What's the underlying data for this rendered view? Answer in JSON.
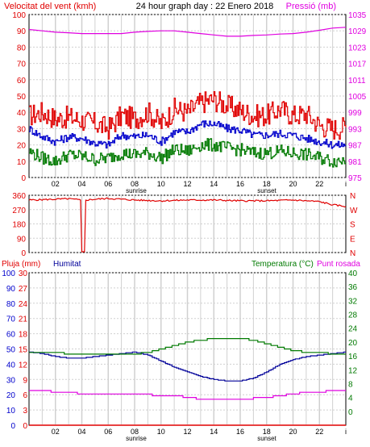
{
  "header": {
    "left": "Velocitat del vent (kmh)",
    "center": "24 hour graph day : 22 Enero 2018",
    "right": "Pressió (mb)"
  },
  "colors": {
    "wind_max": "#e00000",
    "wind_avg": "#0000cc",
    "wind_min": "#007a00",
    "pressure": "#e000e0",
    "grid": "#d0d0d0",
    "axis": "#000000"
  },
  "x_ticks": [
    "02",
    "04",
    "06",
    "08",
    "10",
    "12",
    "14",
    "16",
    "18",
    "20",
    "22",
    "i"
  ],
  "sun": {
    "sunrise_label": "sunrise",
    "sunset_label": "sunset",
    "sunrise_hour": 8,
    "sunset_hour": 17
  },
  "chart_data": [
    {
      "type": "line",
      "title": "24 hour graph day : 22 Enero 2018",
      "ylabel": "Velocitat del vent (kmh)",
      "y2label": "Pressió (mb)",
      "ylim": [
        0,
        100
      ],
      "y2lim": [
        975,
        1035
      ],
      "yticks": [
        "0",
        "10",
        "20",
        "30",
        "40",
        "50",
        "60",
        "70",
        "80",
        "90",
        "100"
      ],
      "y2ticks": [
        "975",
        "981",
        "987",
        "993",
        "999",
        "1005",
        "1011",
        "1017",
        "1023",
        "1029",
        "1035"
      ],
      "x": [
        0,
        1,
        2,
        3,
        4,
        5,
        6,
        7,
        8,
        9,
        10,
        11,
        12,
        13,
        14,
        15,
        16,
        17,
        18,
        19,
        20,
        21,
        22,
        23,
        24
      ],
      "series": [
        {
          "values": [
            38,
            40,
            36,
            37,
            35,
            33,
            30,
            38,
            36,
            40,
            33,
            42,
            40,
            46,
            48,
            44,
            41,
            38,
            38,
            42,
            38,
            39,
            32,
            30,
            31
          ]
        },
        {
          "values": [
            30,
            25,
            22,
            25,
            24,
            21,
            20,
            26,
            25,
            26,
            22,
            28,
            28,
            33,
            33,
            30,
            29,
            26,
            26,
            27,
            26,
            24,
            22,
            20,
            20
          ]
        },
        {
          "values": [
            16,
            12,
            10,
            14,
            13,
            11,
            12,
            15,
            14,
            15,
            12,
            17,
            16,
            20,
            20,
            18,
            17,
            15,
            15,
            16,
            15,
            14,
            12,
            10,
            11
          ]
        },
        {
          "values": [
            1029.5,
            1029,
            1028.5,
            1028.3,
            1028,
            1028,
            1028,
            1028,
            1028.5,
            1028.8,
            1029,
            1029,
            1028.5,
            1028,
            1027.5,
            1027,
            1027,
            1027.3,
            1027.5,
            1027.8,
            1028,
            1028.5,
            1029.2,
            1030,
            1030.3
          ]
        }
      ]
    },
    {
      "type": "line",
      "ylim": [
        0,
        360
      ],
      "yticks": [
        "0",
        "90",
        "180",
        "270",
        "360"
      ],
      "y2ticks": [
        "N",
        "E",
        "S",
        "W",
        "N"
      ],
      "x": [
        0,
        2,
        3,
        3.9,
        4.0,
        4.2,
        4.3,
        5,
        6,
        8,
        10,
        12,
        14,
        16,
        18,
        20,
        22,
        23,
        24
      ],
      "series": [
        {
          "values": [
            330,
            335,
            338,
            330,
            5,
            5,
            330,
            335,
            340,
            330,
            325,
            330,
            330,
            325,
            325,
            330,
            320,
            300,
            290
          ]
        }
      ]
    },
    {
      "type": "line",
      "ylim": [
        0,
        30
      ],
      "yticks": [
        "0",
        "3",
        "6",
        "9",
        "12",
        "15",
        "18",
        "21",
        "24",
        "27",
        "30"
      ],
      "x": [
        0,
        1,
        2,
        3,
        4,
        5,
        6,
        7,
        8,
        9,
        10,
        11,
        12,
        13,
        14,
        15,
        16,
        17,
        18,
        19,
        20,
        21,
        22,
        23,
        24
      ],
      "series": [
        {
          "name": "Pluja (mm)",
          "values": [
            0,
            0,
            0,
            0,
            0,
            0,
            0,
            0,
            0,
            0,
            0,
            0,
            0,
            0,
            0,
            0,
            0,
            0,
            0,
            0,
            0,
            0,
            0,
            0,
            0
          ]
        }
      ]
    },
    {
      "type": "line",
      "ylim": [
        0,
        100
      ],
      "yticks": [
        "0",
        "10",
        "20",
        "30",
        "40",
        "50",
        "60",
        "70",
        "80",
        "90",
        "100"
      ],
      "x": [
        0,
        1,
        2,
        3,
        4,
        5,
        6,
        7,
        8,
        9,
        10,
        11,
        12,
        13,
        14,
        15,
        16,
        17,
        18,
        19,
        20,
        21,
        22,
        23,
        24
      ],
      "series": [
        {
          "name": "Humitat",
          "values": [
            48,
            47,
            45,
            44,
            44,
            45,
            46,
            47,
            48,
            46,
            42,
            38,
            35,
            32,
            30,
            29,
            29,
            31,
            35,
            40,
            43,
            45,
            46,
            47,
            48
          ]
        }
      ]
    },
    {
      "type": "line",
      "ylim": [
        -4,
        40
      ],
      "yticks": [
        "0",
        "4",
        "8",
        "12",
        "16",
        "20",
        "24",
        "28",
        "32",
        "36",
        "40"
      ],
      "x": [
        0,
        1,
        2,
        3,
        4,
        5,
        6,
        7,
        8,
        9,
        10,
        11,
        12,
        13,
        14,
        15,
        16,
        17,
        18,
        19,
        20,
        21,
        22,
        23,
        24
      ],
      "series": [
        {
          "name": "Temperatura (°C)",
          "values": [
            17,
            17,
            17,
            16.5,
            16.5,
            16.5,
            16.5,
            16.5,
            16.5,
            17,
            18,
            19,
            20,
            20.5,
            21,
            21,
            21,
            20.5,
            19.5,
            18.5,
            17.5,
            17,
            17,
            16.5,
            16.5
          ]
        },
        {
          "name": "Punt rosada",
          "values": [
            6,
            6,
            5.5,
            5.5,
            5,
            5,
            5,
            5,
            5,
            4.8,
            4.6,
            4.5,
            4,
            3.5,
            3.5,
            3.5,
            3.5,
            3.8,
            4,
            4.5,
            5,
            5.5,
            5.5,
            6,
            6
          ]
        }
      ]
    }
  ]
}
